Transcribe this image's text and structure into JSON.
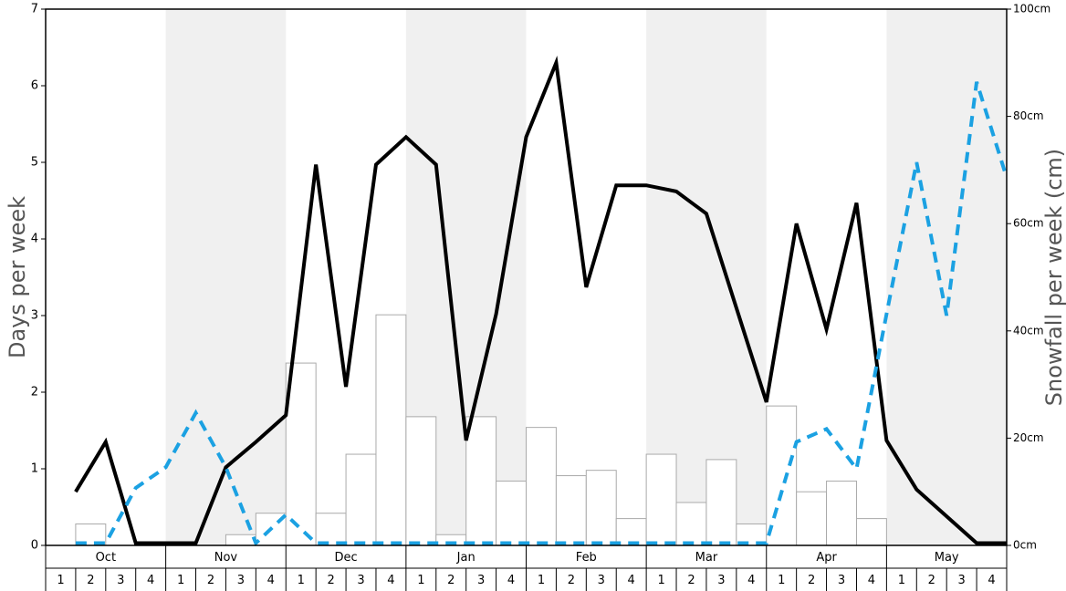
{
  "chart_data": {
    "type": "combo",
    "ylabel": "Days per week",
    "y2label": "Snowfall per week (cm)",
    "months": [
      "Oct",
      "Nov",
      "Dec",
      "Jan",
      "Feb",
      "Mar",
      "Apr",
      "May"
    ],
    "categories": [
      "1",
      "2",
      "3",
      "4",
      "1",
      "2",
      "3",
      "4",
      "1",
      "2",
      "3",
      "4",
      "1",
      "2",
      "3",
      "4",
      "1",
      "2",
      "3",
      "4",
      "1",
      "2",
      "3",
      "4",
      "1",
      "2",
      "3",
      "4",
      "1",
      "2",
      "3",
      "4"
    ],
    "ylim": [
      0,
      7
    ],
    "yticks": [
      0,
      1,
      2,
      3,
      4,
      5,
      6,
      7
    ],
    "y2lim": [
      0,
      100
    ],
    "y2ticks": [
      {
        "value": 0,
        "label": "0cm"
      },
      {
        "value": 20,
        "label": "20cm"
      },
      {
        "value": 40,
        "label": "40cm"
      },
      {
        "value": 60,
        "label": "60cm"
      },
      {
        "value": 80,
        "label": "80cm"
      },
      {
        "value": 100,
        "label": "100cm"
      }
    ],
    "band_color": "#f0f0f0",
    "series": [
      {
        "type": "bar",
        "axis": "y2",
        "color": "#ffffff",
        "edge_color": "#aaaaaa",
        "values": [
          0,
          4,
          0,
          0,
          0,
          0,
          2,
          6,
          34,
          6,
          17,
          43,
          24,
          2,
          24,
          12,
          22,
          13,
          14,
          5,
          17,
          8,
          16,
          4,
          26,
          10,
          12,
          5,
          0,
          0,
          0,
          0
        ]
      },
      {
        "type": "line",
        "color": "#000000",
        "dashed": false,
        "values": [
          0.7,
          1.35,
          0.03,
          0.03,
          0.03,
          1.02,
          1.35,
          1.7,
          4.97,
          2.07,
          4.97,
          5.33,
          4.97,
          1.37,
          3.02,
          5.33,
          6.3,
          3.37,
          4.7,
          4.7,
          4.62,
          4.33,
          3.1,
          1.87,
          4.2,
          2.82,
          4.47,
          1.37,
          0.73,
          0.38,
          0.03,
          0.03
        ]
      },
      {
        "type": "line",
        "color": "#1ba1e2",
        "dashed": true,
        "values": [
          0.03,
          0.03,
          0.75,
          1.02,
          1.73,
          1.02,
          0.03,
          0.4,
          0.03,
          0.03,
          0.03,
          0.03,
          0.03,
          0.03,
          0.03,
          0.03,
          0.03,
          0.03,
          0.03,
          0.03,
          0.03,
          0.03,
          0.03,
          0.03,
          1.35,
          1.52,
          1.0,
          3.02,
          5.0,
          3.0,
          6.05,
          4.8
        ]
      }
    ]
  }
}
